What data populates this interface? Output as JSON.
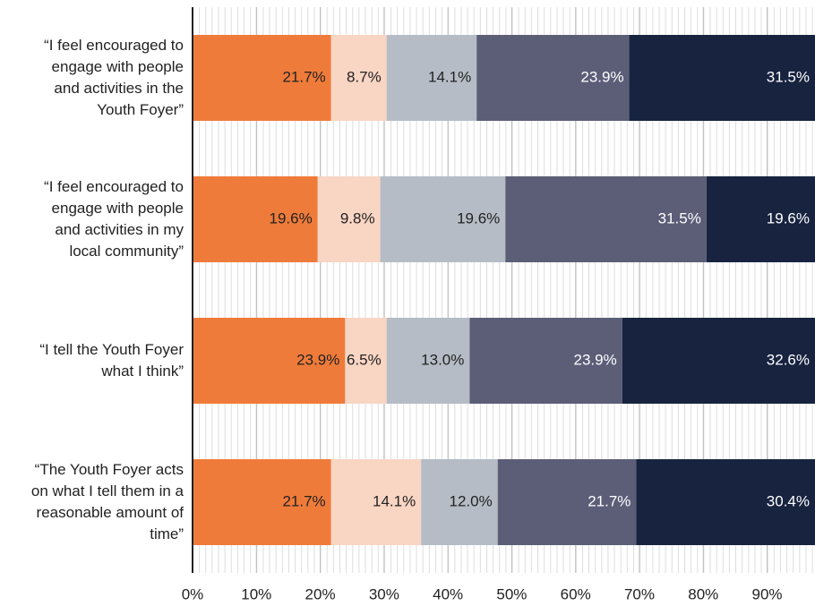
{
  "chart_data": {
    "type": "stacked-bar-horizontal",
    "categories": [
      "“I feel encouraged to\nengage with people\nand activities in the\nYouth Foyer”",
      "“I feel encouraged to\nengage with people\nand activities in my\nlocal community”",
      "“I tell the Youth Foyer\nwhat I think”",
      "“The Youth Foyer acts\non what I tell them in a\nreasonable amount of\ntime”"
    ],
    "series": [
      {
        "color": "#ef7b3a",
        "values": [
          21.7,
          19.6,
          23.9,
          21.7
        ],
        "value_labels": [
          "21.7%",
          "19.6%",
          "23.9%",
          "21.7%"
        ]
      },
      {
        "color": "#f9d5c3",
        "values": [
          8.7,
          9.8,
          6.5,
          14.1
        ],
        "value_labels": [
          "8.7%",
          "9.8%",
          "6.5%",
          "14.1%"
        ]
      },
      {
        "color": "#b5bcc5",
        "values": [
          14.1,
          19.6,
          13.0,
          12.0
        ],
        "value_labels": [
          "14.1%",
          "19.6%",
          "13.0%",
          "12.0%"
        ]
      },
      {
        "color": "#5c5e78",
        "values": [
          23.9,
          31.5,
          23.9,
          21.7
        ],
        "value_labels": [
          "23.9%",
          "31.5%",
          "23.9%",
          "21.7%"
        ]
      },
      {
        "color": "#17233f",
        "values": [
          31.5,
          19.6,
          32.6,
          30.4
        ],
        "value_labels": [
          "31.5%",
          "19.6%",
          "32.6%",
          "30.4%"
        ]
      }
    ],
    "xlim": [
      0,
      97.5
    ],
    "xticks": [
      {
        "value": 0,
        "label": "0%"
      },
      {
        "value": 10,
        "label": "10%"
      },
      {
        "value": 20,
        "label": "20%"
      },
      {
        "value": 30,
        "label": "30%"
      },
      {
        "value": 40,
        "label": "40%"
      },
      {
        "value": 50,
        "label": "50%"
      },
      {
        "value": 60,
        "label": "60%"
      },
      {
        "value": 70,
        "label": "70%"
      },
      {
        "value": 80,
        "label": "80%"
      },
      {
        "value": 90,
        "label": "90%"
      }
    ],
    "grid": true
  }
}
